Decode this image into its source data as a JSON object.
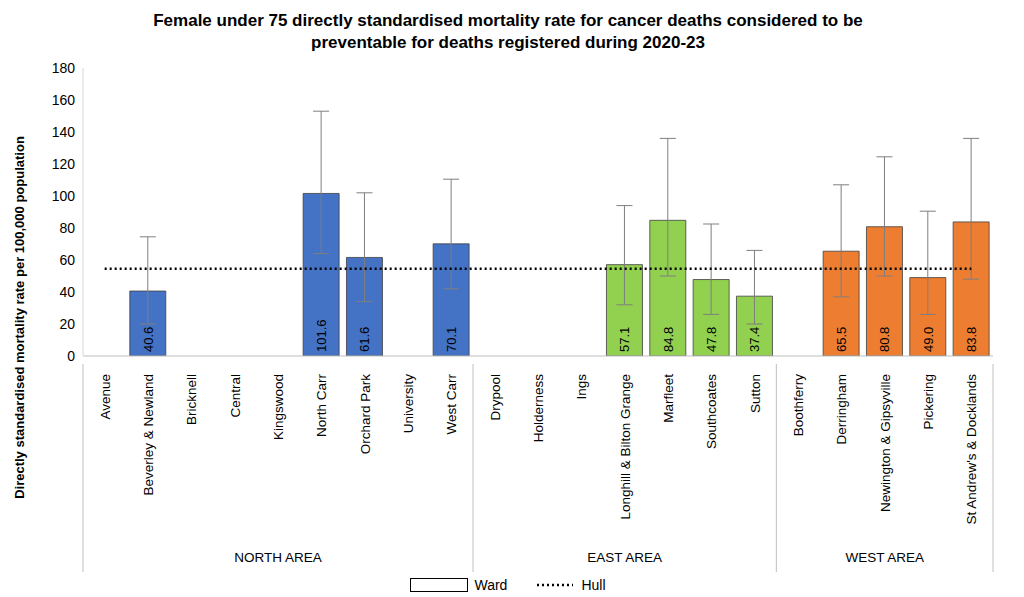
{
  "chart_data": {
    "type": "bar",
    "title": "Female under 75 directly standardised mortality rate for cancer deaths considered to be preventable for deaths registered during 2020-23",
    "y_label": "Directly standardised mortality rate per 100,000 population",
    "categories": [
      "Avenue",
      "Beverley & Newland",
      "Bricknell",
      "Central",
      "Kingswood",
      "North Carr",
      "Orchard Park",
      "University",
      "West Carr",
      "Drypool",
      "Holderness",
      "Ings",
      "Longhill & Bilton Grange",
      "Marfleet",
      "Southcoates",
      "Sutton",
      "Boothferry",
      "Derringham",
      "Newington & Gipsyville",
      "Pickering",
      "St Andrew's & Docklands"
    ],
    "groups": [
      {
        "name": "NORTH AREA",
        "size": 9
      },
      {
        "name": "EAST AREA",
        "size": 7
      },
      {
        "name": "WEST AREA",
        "size": 5
      }
    ],
    "series": [
      {
        "name": "Ward",
        "type": "bar",
        "values": [
          null,
          40.6,
          null,
          null,
          null,
          101.6,
          61.6,
          null,
          70.1,
          null,
          null,
          null,
          57.1,
          84.8,
          47.8,
          37.4,
          null,
          65.5,
          80.8,
          49.0,
          83.8
        ],
        "value_labels": [
          null,
          "40.6",
          null,
          null,
          null,
          "101.6",
          "61.6",
          null,
          "70.1",
          null,
          null,
          null,
          "57.1",
          "84.8",
          "47.8",
          "37.4",
          null,
          "65.5",
          "80.8",
          "49.0",
          "83.8"
        ],
        "ci_lower": [
          null,
          20,
          null,
          null,
          null,
          64,
          34,
          null,
          42,
          null,
          null,
          null,
          32,
          50,
          26,
          20,
          null,
          37,
          50,
          26,
          48
        ],
        "ci_upper": [
          null,
          74.5,
          null,
          null,
          null,
          153,
          102,
          null,
          110.5,
          null,
          null,
          null,
          94,
          136,
          82.5,
          66,
          null,
          107,
          124.5,
          90.5,
          136
        ],
        "colors": [
          "#4472c4",
          "#4472c4",
          "#4472c4",
          "#4472c4",
          "#4472c4",
          "#4472c4",
          "#4472c4",
          "#4472c4",
          "#4472c4",
          "#92d050",
          "#92d050",
          "#92d050",
          "#92d050",
          "#92d050",
          "#92d050",
          "#92d050",
          "#ed7d31",
          "#ed7d31",
          "#ed7d31",
          "#ed7d31",
          "#ed7d31"
        ]
      },
      {
        "name": "Hull",
        "type": "line",
        "line_style": "dotted",
        "color": "#000000",
        "values": [
          54.5,
          54.5,
          54.5,
          54.5,
          54.5,
          54.5,
          54.5,
          54.5,
          54.5,
          54.5,
          54.5,
          54.5,
          54.5,
          54.5,
          54.5,
          54.5,
          54.5,
          54.5,
          54.5,
          54.5,
          54.5
        ]
      }
    ],
    "ylim": [
      0,
      180
    ],
    "yticks": [
      0,
      20,
      40,
      60,
      80,
      100,
      120,
      140,
      160,
      180
    ],
    "grid": false,
    "data_labels": true,
    "legend": "bottom"
  }
}
